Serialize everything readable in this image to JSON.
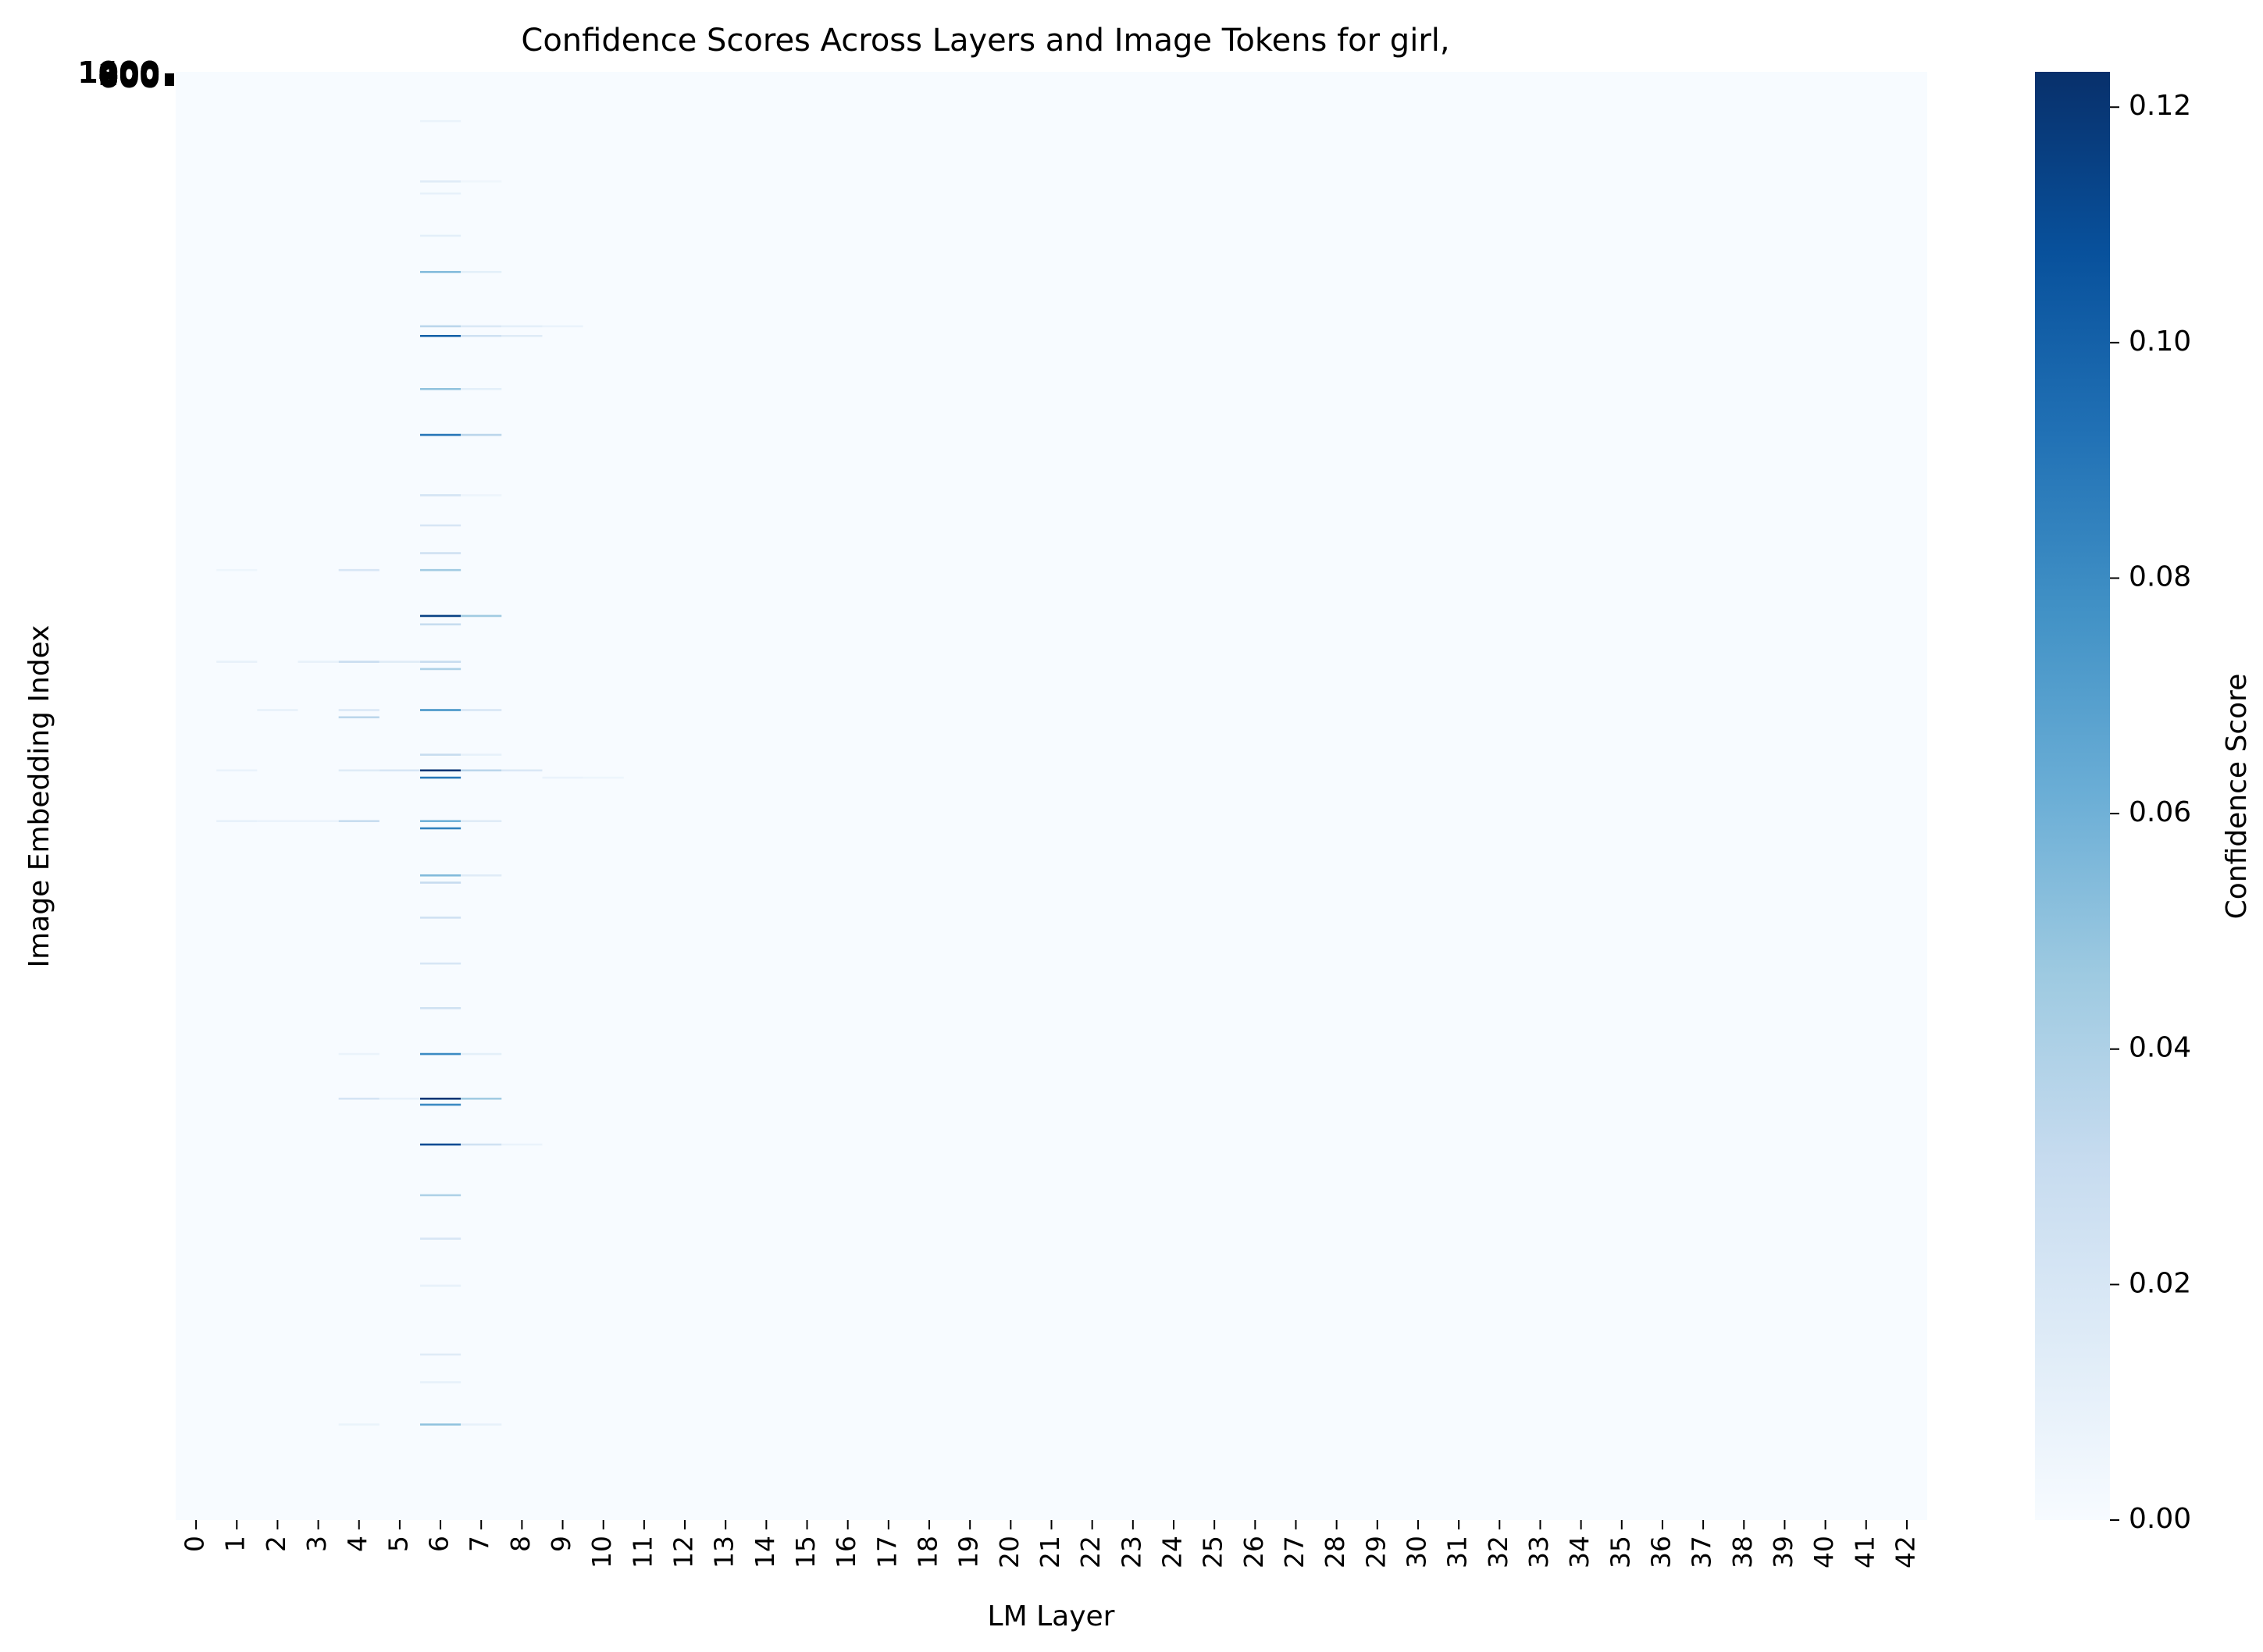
{
  "chart_data": {
    "type": "heatmap",
    "title": "Confidence Scores Across Layers and Image Tokens for girl,",
    "xlabel": "LM Layer",
    "ylabel": "Image Embedding Index",
    "x_tick_labels": [
      "0",
      "1",
      "2",
      "3",
      "4",
      "5",
      "6",
      "7",
      "8",
      "9",
      "10",
      "11",
      "12",
      "13",
      "14",
      "15",
      "16",
      "17",
      "18",
      "19",
      "20",
      "21",
      "22",
      "23",
      "24",
      "25",
      "26",
      "27",
      "28",
      "29",
      "30",
      "31",
      "32",
      "33",
      "34",
      "35",
      "36",
      "37",
      "38",
      "39",
      "40",
      "41",
      "42"
    ],
    "y_overlapping_tick_labels": [
      "0",
      "200",
      "400",
      "600",
      "800",
      "1000"
    ],
    "n_rows": 1200,
    "colorbar": {
      "label": "Confidence Score",
      "vmin": 0,
      "vmax": 0.123,
      "ticks": [
        0.0,
        0.02,
        0.04,
        0.06,
        0.08,
        0.1,
        0.12
      ],
      "tick_labels": [
        "0.00",
        "0.02",
        "0.04",
        "0.06",
        "0.08",
        "0.10",
        "0.12"
      ],
      "colormap": "Blues",
      "low_color": "#f7fbff",
      "high_color": "#08306b"
    },
    "cells": [
      {
        "row": 40,
        "layer": 6,
        "value": 0.008
      },
      {
        "row": 90,
        "layer": 6,
        "value": 0.015
      },
      {
        "row": 90,
        "layer": 7,
        "value": 0.005
      },
      {
        "row": 100,
        "layer": 6,
        "value": 0.01
      },
      {
        "row": 135,
        "layer": 6,
        "value": 0.012
      },
      {
        "row": 165,
        "layer": 6,
        "value": 0.055
      },
      {
        "row": 165,
        "layer": 7,
        "value": 0.012
      },
      {
        "row": 210,
        "layer": 6,
        "value": 0.035
      },
      {
        "row": 210,
        "layer": 7,
        "value": 0.018
      },
      {
        "row": 210,
        "layer": 8,
        "value": 0.012
      },
      {
        "row": 210,
        "layer": 9,
        "value": 0.008
      },
      {
        "row": 218,
        "layer": 6,
        "value": 0.1
      },
      {
        "row": 218,
        "layer": 7,
        "value": 0.025
      },
      {
        "row": 218,
        "layer": 8,
        "value": 0.015
      },
      {
        "row": 262,
        "layer": 6,
        "value": 0.05
      },
      {
        "row": 262,
        "layer": 7,
        "value": 0.012
      },
      {
        "row": 300,
        "layer": 6,
        "value": 0.09
      },
      {
        "row": 300,
        "layer": 7,
        "value": 0.035
      },
      {
        "row": 350,
        "layer": 6,
        "value": 0.022
      },
      {
        "row": 350,
        "layer": 7,
        "value": 0.006
      },
      {
        "row": 375,
        "layer": 6,
        "value": 0.02
      },
      {
        "row": 398,
        "layer": 6,
        "value": 0.025
      },
      {
        "row": 412,
        "layer": 6,
        "value": 0.045
      },
      {
        "row": 412,
        "layer": 4,
        "value": 0.02
      },
      {
        "row": 412,
        "layer": 1,
        "value": 0.006
      },
      {
        "row": 450,
        "layer": 6,
        "value": 0.115
      },
      {
        "row": 450,
        "layer": 7,
        "value": 0.045
      },
      {
        "row": 457,
        "layer": 6,
        "value": 0.03
      },
      {
        "row": 488,
        "layer": 6,
        "value": 0.03
      },
      {
        "row": 488,
        "layer": 4,
        "value": 0.028
      },
      {
        "row": 488,
        "layer": 5,
        "value": 0.015
      },
      {
        "row": 488,
        "layer": 1,
        "value": 0.01
      },
      {
        "row": 488,
        "layer": 3,
        "value": 0.01
      },
      {
        "row": 494,
        "layer": 6,
        "value": 0.04
      },
      {
        "row": 528,
        "layer": 6,
        "value": 0.075
      },
      {
        "row": 528,
        "layer": 7,
        "value": 0.02
      },
      {
        "row": 528,
        "layer": 4,
        "value": 0.018
      },
      {
        "row": 528,
        "layer": 2,
        "value": 0.01
      },
      {
        "row": 534,
        "layer": 4,
        "value": 0.035
      },
      {
        "row": 565,
        "layer": 6,
        "value": 0.03
      },
      {
        "row": 565,
        "layer": 7,
        "value": 0.01
      },
      {
        "row": 578,
        "layer": 6,
        "value": 0.12
      },
      {
        "row": 578,
        "layer": 7,
        "value": 0.035
      },
      {
        "row": 578,
        "layer": 8,
        "value": 0.018
      },
      {
        "row": 578,
        "layer": 4,
        "value": 0.015
      },
      {
        "row": 578,
        "layer": 5,
        "value": 0.02
      },
      {
        "row": 578,
        "layer": 1,
        "value": 0.008
      },
      {
        "row": 584,
        "layer": 6,
        "value": 0.09
      },
      {
        "row": 584,
        "layer": 9,
        "value": 0.008
      },
      {
        "row": 584,
        "layer": 10,
        "value": 0.006
      },
      {
        "row": 620,
        "layer": 6,
        "value": 0.06
      },
      {
        "row": 620,
        "layer": 7,
        "value": 0.015
      },
      {
        "row": 620,
        "layer": 4,
        "value": 0.03
      },
      {
        "row": 620,
        "layer": 1,
        "value": 0.01
      },
      {
        "row": 620,
        "layer": 2,
        "value": 0.008
      },
      {
        "row": 620,
        "layer": 3,
        "value": 0.008
      },
      {
        "row": 626,
        "layer": 6,
        "value": 0.085
      },
      {
        "row": 665,
        "layer": 6,
        "value": 0.055
      },
      {
        "row": 665,
        "layer": 7,
        "value": 0.015
      },
      {
        "row": 671,
        "layer": 6,
        "value": 0.03
      },
      {
        "row": 700,
        "layer": 6,
        "value": 0.025
      },
      {
        "row": 738,
        "layer": 6,
        "value": 0.02
      },
      {
        "row": 775,
        "layer": 6,
        "value": 0.025
      },
      {
        "row": 813,
        "layer": 6,
        "value": 0.08
      },
      {
        "row": 813,
        "layer": 7,
        "value": 0.012
      },
      {
        "row": 813,
        "layer": 4,
        "value": 0.008
      },
      {
        "row": 850,
        "layer": 6,
        "value": 0.12
      },
      {
        "row": 850,
        "layer": 7,
        "value": 0.045
      },
      {
        "row": 850,
        "layer": 4,
        "value": 0.022
      },
      {
        "row": 850,
        "layer": 5,
        "value": 0.01
      },
      {
        "row": 855,
        "layer": 6,
        "value": 0.08
      },
      {
        "row": 888,
        "layer": 6,
        "value": 0.11
      },
      {
        "row": 888,
        "layer": 7,
        "value": 0.025
      },
      {
        "row": 888,
        "layer": 8,
        "value": 0.008
      },
      {
        "row": 930,
        "layer": 6,
        "value": 0.04
      },
      {
        "row": 966,
        "layer": 6,
        "value": 0.02
      },
      {
        "row": 1005,
        "layer": 6,
        "value": 0.01
      },
      {
        "row": 1062,
        "layer": 6,
        "value": 0.015
      },
      {
        "row": 1085,
        "layer": 6,
        "value": 0.01
      },
      {
        "row": 1120,
        "layer": 6,
        "value": 0.05
      },
      {
        "row": 1120,
        "layer": 7,
        "value": 0.01
      },
      {
        "row": 1120,
        "layer": 4,
        "value": 0.008
      }
    ]
  }
}
